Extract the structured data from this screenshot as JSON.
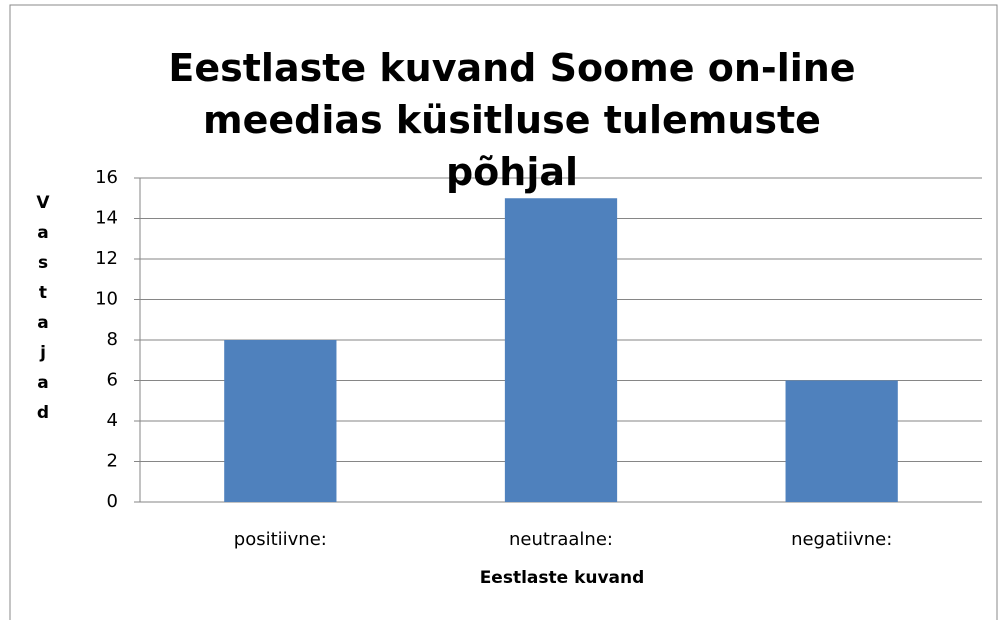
{
  "chart_data": {
    "type": "bar",
    "title": "Eestlaste kuvand Soome on-line meedias küsitluse tulemuste põhjal",
    "x_label": "Eestlaste kuvand",
    "y_label": "Vastajad",
    "categories": [
      "positiivne:",
      "neutraalne:",
      "negatiivne:"
    ],
    "values": [
      8,
      15,
      6
    ],
    "color": "#4f81bd",
    "ylim": [
      0,
      16
    ],
    "yticks": [
      0,
      2,
      4,
      6,
      8,
      10,
      12,
      14,
      16
    ],
    "grid": true
  }
}
